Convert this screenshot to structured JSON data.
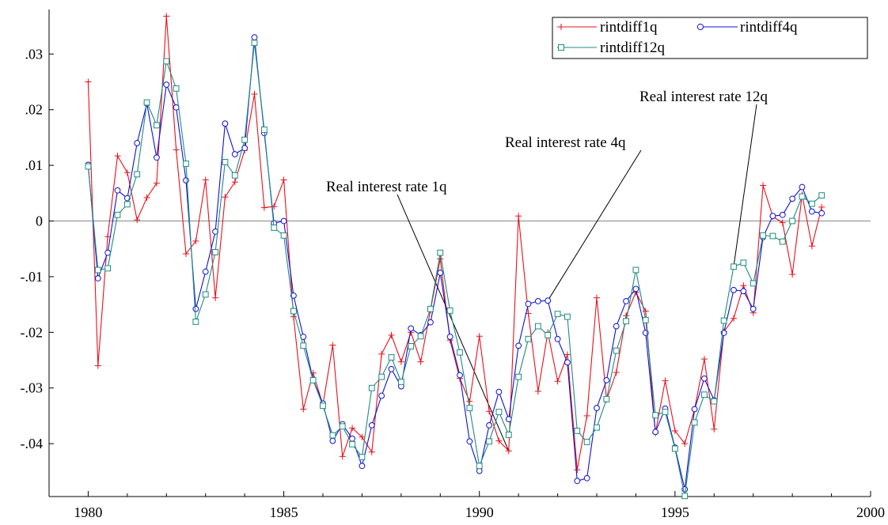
{
  "chart_data": {
    "type": "line",
    "title": "",
    "xlabel": "",
    "ylabel": "",
    "xlim": [
      1979.0,
      2000.0
    ],
    "ylim": [
      -0.0495,
      0.038
    ],
    "x_ticks": [
      1980,
      1985,
      1990,
      1995,
      2000
    ],
    "x_tick_labels": [
      "1980",
      "1985",
      "1990",
      "1995",
      "2000"
    ],
    "y_ticks": [
      0.03,
      0.02,
      0.01,
      0,
      -0.01,
      -0.02,
      -0.03,
      -0.04
    ],
    "y_tick_labels": [
      ".03",
      ".02",
      ".01",
      "0",
      "-.01",
      "-.02",
      "-.03",
      "-.04"
    ],
    "zero_line": true,
    "grid": false,
    "legend_position": "top-right",
    "x": [
      1980.0,
      1980.25,
      1980.5,
      1980.75,
      1981.0,
      1981.25,
      1981.5,
      1981.75,
      1982.0,
      1982.25,
      1982.5,
      1982.75,
      1983.0,
      1983.25,
      1983.5,
      1983.75,
      1984.0,
      1984.25,
      1984.5,
      1984.75,
      1985.0,
      1985.25,
      1985.5,
      1985.75,
      1986.0,
      1986.25,
      1986.5,
      1986.75,
      1987.0,
      1987.25,
      1987.5,
      1987.75,
      1988.0,
      1988.25,
      1988.5,
      1988.75,
      1989.0,
      1989.25,
      1989.5,
      1989.75,
      1990.0,
      1990.25,
      1990.5,
      1990.75,
      1991.0,
      1991.25,
      1991.5,
      1991.75,
      1992.0,
      1992.25,
      1992.5,
      1992.75,
      1993.0,
      1993.25,
      1993.5,
      1993.75,
      1994.0,
      1994.25,
      1994.5,
      1994.75,
      1995.0,
      1995.25,
      1995.5,
      1995.75,
      1996.0,
      1996.25,
      1996.5,
      1996.75,
      1997.0,
      1997.25,
      1997.5,
      1997.75,
      1998.0,
      1998.25,
      1998.5,
      1998.75
    ],
    "series": [
      {
        "name": "rintdiff1q",
        "color": "#e8101c",
        "marker": "plus",
        "values": [
          0.025,
          -0.026,
          -0.0028,
          0.0117,
          0.0087,
          0.0002,
          0.0042,
          0.0068,
          0.0368,
          0.0128,
          -0.0059,
          -0.0036,
          0.0074,
          -0.0138,
          0.0043,
          0.007,
          0.0127,
          0.0228,
          0.0024,
          0.0026,
          0.0074,
          -0.0172,
          -0.0338,
          -0.0273,
          -0.033,
          -0.0223,
          -0.0423,
          -0.0372,
          -0.0388,
          -0.0415,
          -0.0239,
          -0.0205,
          -0.0253,
          -0.02,
          -0.0253,
          -0.016,
          -0.0068,
          -0.0214,
          -0.0283,
          -0.0324,
          -0.0207,
          -0.0342,
          -0.0395,
          -0.0413,
          0.0009,
          -0.0166,
          -0.0306,
          -0.02,
          -0.0288,
          -0.024,
          -0.0447,
          -0.035,
          -0.0138,
          -0.0321,
          -0.0272,
          -0.017,
          -0.0128,
          -0.0162,
          -0.0381,
          -0.0287,
          -0.0377,
          -0.04,
          -0.0338,
          -0.0248,
          -0.0374,
          -0.0199,
          -0.0175,
          -0.0116,
          -0.0165,
          0.0064,
          0.0008,
          -0.0003,
          -0.0096,
          0.0047,
          -0.0045,
          0.0025
        ]
      },
      {
        "name": "rintdiff4q",
        "color": "#1010d8",
        "marker": "circle",
        "values": [
          0.0101,
          -0.0103,
          -0.0057,
          0.0055,
          0.0041,
          0.014,
          0.0211,
          0.0114,
          0.0245,
          0.0204,
          0.0073,
          -0.0158,
          -0.0091,
          -0.0019,
          0.0175,
          0.012,
          0.0131,
          0.033,
          0.0158,
          -0.0004,
          0.0,
          -0.0134,
          -0.0208,
          -0.0285,
          -0.0328,
          -0.0395,
          -0.0365,
          -0.0391,
          -0.044,
          -0.0367,
          -0.0314,
          -0.0266,
          -0.0297,
          -0.0193,
          -0.0205,
          -0.0182,
          -0.0093,
          -0.0208,
          -0.0277,
          -0.0396,
          -0.0449,
          -0.0367,
          -0.0307,
          -0.0356,
          -0.0224,
          -0.0149,
          -0.0144,
          -0.0143,
          -0.0212,
          -0.0254,
          -0.0467,
          -0.0462,
          -0.0336,
          -0.0286,
          -0.0189,
          -0.0144,
          -0.0122,
          -0.0201,
          -0.0379,
          -0.0337,
          -0.0407,
          -0.0482,
          -0.0338,
          -0.0283,
          -0.0322,
          -0.0201,
          -0.0124,
          -0.0126,
          -0.0158,
          -0.0029,
          0.0009,
          0.0011,
          0.004,
          0.0061,
          0.0017,
          0.0014
        ]
      },
      {
        "name": "rintdiff12q",
        "color": "#1e8c80",
        "marker": "square",
        "values": [
          0.0098,
          -0.0088,
          -0.0085,
          0.0011,
          0.003,
          0.0084,
          0.0213,
          0.0172,
          0.0287,
          0.0238,
          0.0103,
          -0.0181,
          -0.0132,
          -0.0056,
          0.0106,
          0.0082,
          0.0146,
          0.032,
          0.0164,
          -0.0012,
          -0.0026,
          -0.0162,
          -0.0224,
          -0.0286,
          -0.0332,
          -0.0385,
          -0.0369,
          -0.0401,
          -0.0424,
          -0.03,
          -0.028,
          -0.0245,
          -0.0289,
          -0.0225,
          -0.0207,
          -0.0158,
          -0.0057,
          -0.0161,
          -0.0236,
          -0.0336,
          -0.044,
          -0.0396,
          -0.0343,
          -0.0384,
          -0.028,
          -0.0212,
          -0.0189,
          -0.0205,
          -0.0167,
          -0.0172,
          -0.0377,
          -0.0397,
          -0.0371,
          -0.032,
          -0.0233,
          -0.018,
          -0.0088,
          -0.0178,
          -0.0349,
          -0.0343,
          -0.0409,
          -0.0494,
          -0.0362,
          -0.0312,
          -0.0324,
          -0.0179,
          -0.0082,
          -0.0075,
          -0.0112,
          -0.0026,
          -0.0027,
          -0.0037,
          0.0,
          0.0044,
          0.0031,
          0.0046
        ]
      }
    ],
    "annotations": [
      {
        "text": "Real interest rate 1q",
        "target_series": "rintdiff1q",
        "target_x": 1990.75
      },
      {
        "text": "Real interest rate 4q",
        "target_series": "rintdiff4q",
        "target_x": 1991.75
      },
      {
        "text": "Real interest rate 12q",
        "target_series": "rintdiff12q",
        "target_x": 1996.5
      }
    ]
  }
}
